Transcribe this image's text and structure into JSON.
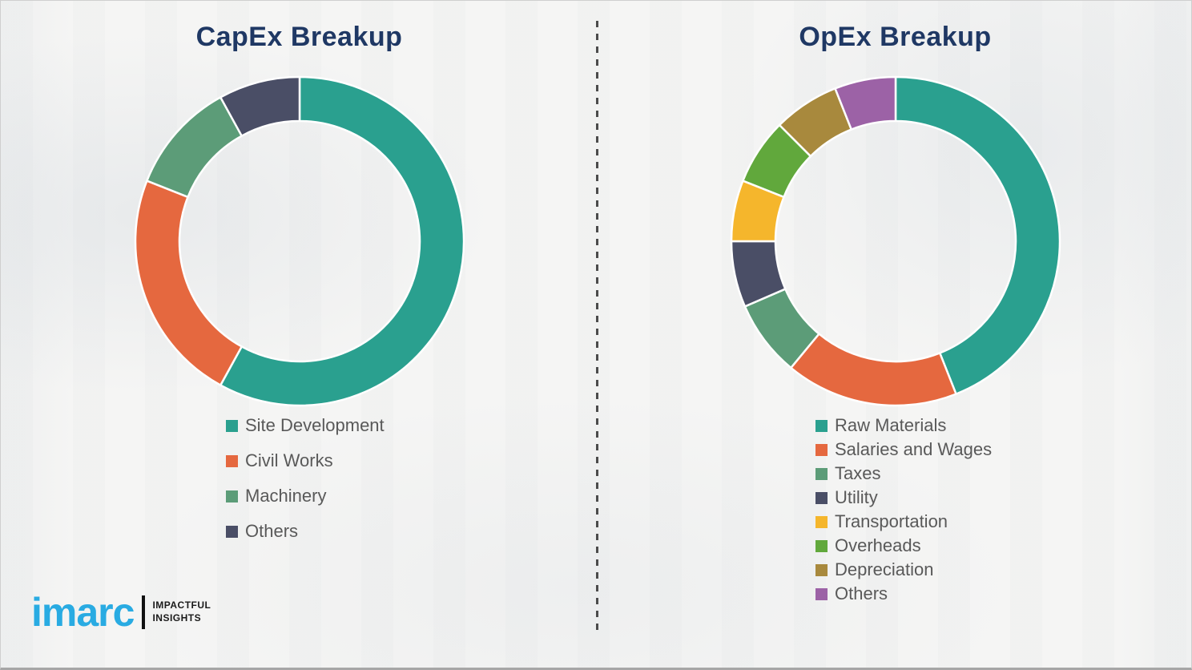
{
  "page": {
    "background_color": "#f4f4f3",
    "title_color": "#1F3864",
    "legend_text_color": "#595959"
  },
  "chart_data": [
    {
      "type": "pie",
      "donut": true,
      "title": "CapEx Breakup",
      "labels": [
        "Site Development",
        "Civil Works",
        "Machinery",
        "Others"
      ],
      "values": [
        58,
        23,
        11,
        8
      ],
      "colors": [
        "#2AA08F",
        "#E5683F",
        "#5C9C78",
        "#4A4E66"
      ],
      "unit": "percent (estimated from arc angles)",
      "start_angle_deg": 0,
      "direction": "clockwise",
      "legend_position": "bottom"
    },
    {
      "type": "pie",
      "donut": true,
      "title": "OpEx Breakup",
      "labels": [
        "Raw Materials",
        "Salaries and Wages",
        "Taxes",
        "Utility",
        "Transportation",
        "Overheads",
        "Depreciation",
        "Others"
      ],
      "values": [
        44,
        17,
        7.5,
        6.5,
        6,
        6.5,
        6.5,
        6
      ],
      "colors": [
        "#2AA08F",
        "#E5683F",
        "#5C9C78",
        "#4A4E66",
        "#F5B62C",
        "#61A83C",
        "#A8893D",
        "#9C62A6"
      ],
      "unit": "percent (estimated from arc angles)",
      "start_angle_deg": 0,
      "direction": "clockwise",
      "legend_position": "bottom"
    }
  ],
  "logo": {
    "brand": "imarc",
    "brand_color": "#29ABE2",
    "tagline_line1": "IMPACTFUL",
    "tagline_line2": "INSIGHTS"
  }
}
